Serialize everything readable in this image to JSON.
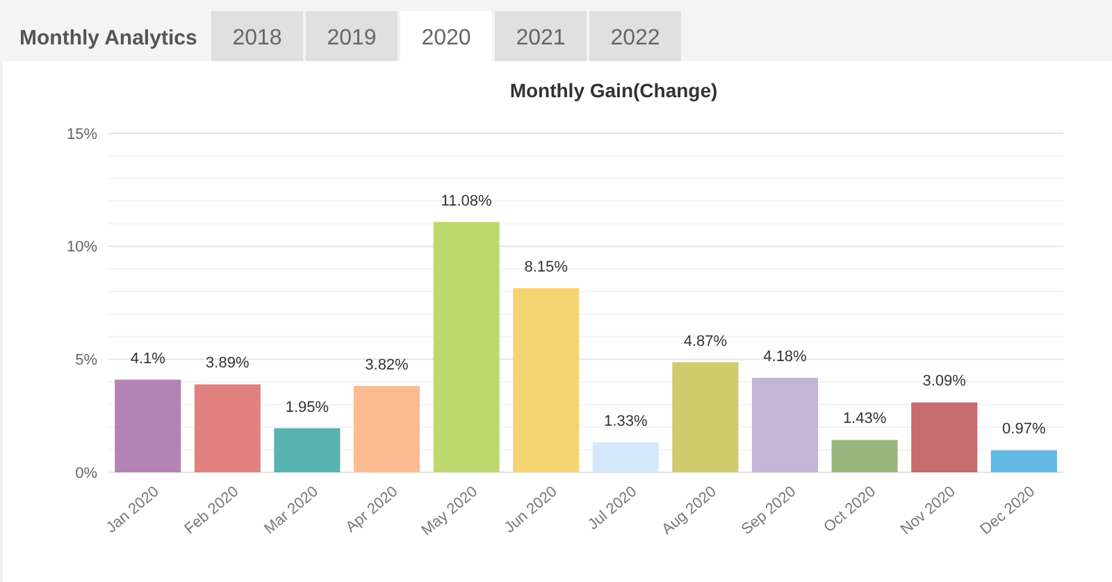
{
  "chart_data": {
    "type": "bar",
    "title": "Monthly Gain(Change)",
    "annotations": [
      "Monthly Analytics",
      "2018",
      "2019",
      "2020",
      "2021",
      "2022"
    ],
    "categories": [
      "Jan 2020",
      "Feb 2020",
      "Mar 2020",
      "Apr 2020",
      "May 2020",
      "Jun 2020",
      "Jul 2020",
      "Aug 2020",
      "Sep 2020",
      "Oct 2020",
      "Nov 2020",
      "Dec 2020"
    ],
    "values": [
      4.1,
      3.89,
      1.95,
      3.82,
      11.08,
      8.15,
      1.33,
      4.87,
      4.18,
      1.43,
      3.09,
      0.97
    ],
    "value_labels": [
      "4.1%",
      "3.89%",
      "1.95%",
      "3.82%",
      "11.08%",
      "8.15%",
      "1.33%",
      "4.87%",
      "4.18%",
      "1.43%",
      "3.09%",
      "0.97%"
    ],
    "colors": [
      "#b283b4",
      "#e0817f",
      "#57b3b0",
      "#fdbb90",
      "#bdd86e",
      "#f6d474",
      "#d5e8fb",
      "#d0cb6c",
      "#c4b4d6",
      "#9ab67f",
      "#c66b6e",
      "#62b7e3"
    ],
    "ylim": [
      0,
      15
    ],
    "yticks": [
      {
        "value": 0,
        "label": "0%"
      },
      {
        "value": 1,
        "label": null
      },
      {
        "value": 2,
        "label": null
      },
      {
        "value": 3,
        "label": null
      },
      {
        "value": 4,
        "label": null
      },
      {
        "value": 5,
        "label": "5%"
      },
      {
        "value": 6,
        "label": null
      },
      {
        "value": 7,
        "label": null
      },
      {
        "value": 8,
        "label": null
      },
      {
        "value": 9,
        "label": null
      },
      {
        "value": 10,
        "label": "10%"
      },
      {
        "value": 11,
        "label": null
      },
      {
        "value": 12,
        "label": null
      },
      {
        "value": 13,
        "label": null
      },
      {
        "value": 14,
        "label": null
      },
      {
        "value": 15,
        "label": "15%"
      }
    ],
    "grid": true
  }
}
